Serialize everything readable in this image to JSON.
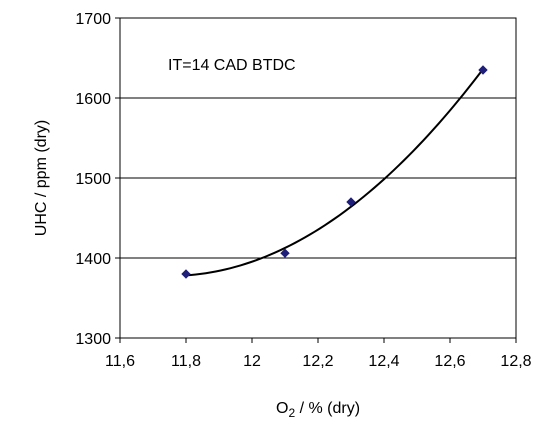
{
  "chart_data": {
    "type": "scatter",
    "title": "",
    "x": [
      11.8,
      12.1,
      12.3,
      12.7
    ],
    "y": [
      1380,
      1406,
      1470,
      1635
    ],
    "series": [
      {
        "x": [
          11.8,
          12.1,
          12.3,
          12.7
        ],
        "values": [
          1380,
          1406,
          1470,
          1635
        ],
        "color": "#1f1f7a"
      }
    ],
    "trendline": {
      "type": "polynomial",
      "color": "#000000"
    },
    "xlim": [
      11.6,
      12.8
    ],
    "ylim": [
      1300,
      1700
    ],
    "x_ticks": [
      11.6,
      11.8,
      12,
      12.2,
      12.4,
      12.6,
      12.8
    ],
    "y_ticks": [
      1300,
      1400,
      1500,
      1600,
      1700
    ],
    "x_tick_labels": [
      "11,6",
      "11,8",
      "12",
      "12,2",
      "12,4",
      "12,6",
      "12,8"
    ],
    "y_tick_labels": [
      "1300",
      "1400",
      "1500",
      "1600",
      "1700"
    ],
    "xlabel": {
      "main": "O",
      "sub": "2",
      "rest": " / % (dry)"
    },
    "ylabel": "UHC / ppm (dry)",
    "annotation": "IT=14 CAD BTDC",
    "grid": {
      "y": true,
      "x": false
    },
    "legend": "none"
  }
}
